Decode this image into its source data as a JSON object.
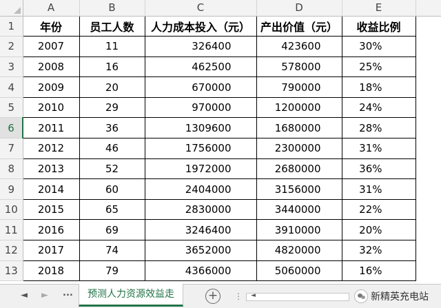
{
  "columns": [
    "A",
    "B",
    "C",
    "D",
    "E"
  ],
  "rows": [
    "1",
    "2",
    "3",
    "4",
    "5",
    "6",
    "7",
    "8",
    "9",
    "10",
    "11",
    "12",
    "13"
  ],
  "active_row": "6",
  "headers": {
    "year": "年份",
    "staff": "员工人数",
    "cost": "人力成本投入（元）",
    "output": "产出价值（元）",
    "ratio": "收益比例"
  },
  "data": [
    {
      "year": "2007",
      "staff": "11",
      "cost": "326400",
      "output": "423600",
      "ratio": "30%"
    },
    {
      "year": "2008",
      "staff": "16",
      "cost": "462500",
      "output": "578000",
      "ratio": "25%"
    },
    {
      "year": "2009",
      "staff": "20",
      "cost": "670000",
      "output": "790000",
      "ratio": "18%"
    },
    {
      "year": "2010",
      "staff": "29",
      "cost": "970000",
      "output": "1200000",
      "ratio": "24%"
    },
    {
      "year": "2011",
      "staff": "36",
      "cost": "1309600",
      "output": "1680000",
      "ratio": "28%"
    },
    {
      "year": "2012",
      "staff": "46",
      "cost": "1756000",
      "output": "2300000",
      "ratio": "31%"
    },
    {
      "year": "2013",
      "staff": "52",
      "cost": "1972000",
      "output": "2680000",
      "ratio": "36%"
    },
    {
      "year": "2014",
      "staff": "60",
      "cost": "2404000",
      "output": "3156000",
      "ratio": "31%"
    },
    {
      "year": "2015",
      "staff": "65",
      "cost": "2830000",
      "output": "3440000",
      "ratio": "22%"
    },
    {
      "year": "2016",
      "staff": "69",
      "cost": "3246400",
      "output": "3910000",
      "ratio": "20%"
    },
    {
      "year": "2017",
      "staff": "74",
      "cost": "3652000",
      "output": "4820000",
      "ratio": "32%"
    },
    {
      "year": "2018",
      "staff": "79",
      "cost": "4366000",
      "output": "5060000",
      "ratio": "16%"
    }
  ],
  "tabbar": {
    "prev_icon": "◄",
    "next_icon": "►",
    "more_label": "...",
    "sheet_tab": "预测人力资源效益走",
    "add_icon": "+",
    "separator": "⋮",
    "scroll_left_icon": "◄",
    "watermark": "新精英充电站"
  },
  "colors": {
    "accent": "#217346",
    "grid": "#000000",
    "header_bg": "#f3f3f3"
  }
}
